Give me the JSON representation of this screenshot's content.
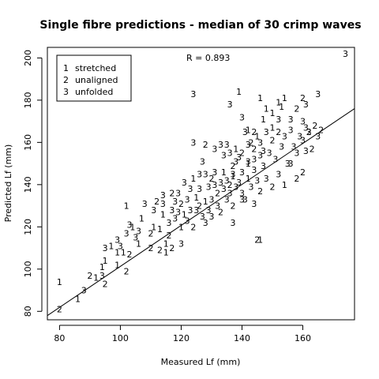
{
  "chart_data": {
    "type": "scatter",
    "title": "Single fibre predictions - median of 30 crimp waves",
    "xlabel": "Measured Lf (mm)",
    "ylabel": "Predicted Lf (mm)",
    "xlim": [
      76,
      177
    ],
    "ylim": [
      76,
      205
    ],
    "x_ticks": [
      80,
      100,
      120,
      140,
      160
    ],
    "y_ticks": [
      80,
      100,
      120,
      140,
      160,
      180,
      200
    ],
    "grid": false,
    "annotation": "R = 0.893",
    "legend": {
      "position": "top-left",
      "entries": [
        {
          "symbol": "1",
          "label": "stretched"
        },
        {
          "symbol": "2",
          "label": "unaligned"
        },
        {
          "symbol": "3",
          "label": "unfolded"
        }
      ]
    },
    "fit_line": {
      "x": [
        76,
        177
      ],
      "y": [
        78,
        176
      ]
    },
    "points": [
      {
        "x": 80,
        "y": 94,
        "s": "1"
      },
      {
        "x": 80,
        "y": 81,
        "s": "2"
      },
      {
        "x": 86,
        "y": 86,
        "s": "1"
      },
      {
        "x": 88,
        "y": 90,
        "s": "3"
      },
      {
        "x": 90,
        "y": 97,
        "s": "2"
      },
      {
        "x": 92,
        "y": 96,
        "s": "1"
      },
      {
        "x": 94,
        "y": 101,
        "s": "1"
      },
      {
        "x": 95,
        "y": 104,
        "s": "1"
      },
      {
        "x": 94,
        "y": 97,
        "s": "3"
      },
      {
        "x": 95,
        "y": 93,
        "s": "2"
      },
      {
        "x": 99,
        "y": 102,
        "s": "1"
      },
      {
        "x": 102,
        "y": 99,
        "s": "2"
      },
      {
        "x": 95,
        "y": 110,
        "s": "3"
      },
      {
        "x": 97,
        "y": 111,
        "s": "1"
      },
      {
        "x": 99,
        "y": 108,
        "s": "1"
      },
      {
        "x": 100,
        "y": 111,
        "s": "3"
      },
      {
        "x": 101,
        "y": 108,
        "s": "1"
      },
      {
        "x": 103,
        "y": 107,
        "s": "2"
      },
      {
        "x": 99,
        "y": 114,
        "s": "3"
      },
      {
        "x": 102,
        "y": 117,
        "s": "3"
      },
      {
        "x": 103,
        "y": 121,
        "s": "3"
      },
      {
        "x": 104,
        "y": 120,
        "s": "1"
      },
      {
        "x": 105,
        "y": 115,
        "s": "3"
      },
      {
        "x": 106,
        "y": 118,
        "s": "3"
      },
      {
        "x": 107,
        "y": 124,
        "s": "1"
      },
      {
        "x": 106,
        "y": 112,
        "s": "1"
      },
      {
        "x": 102,
        "y": 130,
        "s": "1"
      },
      {
        "x": 108,
        "y": 131,
        "s": "3"
      },
      {
        "x": 110,
        "y": 110,
        "s": "2"
      },
      {
        "x": 110,
        "y": 117,
        "s": "2"
      },
      {
        "x": 111,
        "y": 120,
        "s": "1"
      },
      {
        "x": 111,
        "y": 128,
        "s": "3"
      },
      {
        "x": 112,
        "y": 132,
        "s": "2"
      },
      {
        "x": 113,
        "y": 119,
        "s": "1"
      },
      {
        "x": 113,
        "y": 109,
        "s": "2"
      },
      {
        "x": 114,
        "y": 126,
        "s": "1"
      },
      {
        "x": 115,
        "y": 112,
        "s": "1"
      },
      {
        "x": 115,
        "y": 108,
        "s": "1"
      },
      {
        "x": 114,
        "y": 131,
        "s": "3"
      },
      {
        "x": 114,
        "y": 135,
        "s": "3"
      },
      {
        "x": 116,
        "y": 116,
        "s": "2"
      },
      {
        "x": 116,
        "y": 122,
        "s": "3"
      },
      {
        "x": 117,
        "y": 110,
        "s": "2"
      },
      {
        "x": 117,
        "y": 128,
        "s": "3"
      },
      {
        "x": 117,
        "y": 136,
        "s": "2"
      },
      {
        "x": 118,
        "y": 124,
        "s": "3"
      },
      {
        "x": 118,
        "y": 132,
        "s": "3"
      },
      {
        "x": 119,
        "y": 127,
        "s": "3"
      },
      {
        "x": 119,
        "y": 136,
        "s": "3"
      },
      {
        "x": 120,
        "y": 120,
        "s": "1"
      },
      {
        "x": 120,
        "y": 131,
        "s": "2"
      },
      {
        "x": 120,
        "y": 112,
        "s": "3"
      },
      {
        "x": 121,
        "y": 126,
        "s": "1"
      },
      {
        "x": 121,
        "y": 141,
        "s": "3"
      },
      {
        "x": 122,
        "y": 133,
        "s": "3"
      },
      {
        "x": 122,
        "y": 123,
        "s": "3"
      },
      {
        "x": 123,
        "y": 138,
        "s": "3"
      },
      {
        "x": 123,
        "y": 128,
        "s": "3"
      },
      {
        "x": 124,
        "y": 120,
        "s": "2"
      },
      {
        "x": 124,
        "y": 143,
        "s": "1"
      },
      {
        "x": 125,
        "y": 134,
        "s": "1"
      },
      {
        "x": 125,
        "y": 128,
        "s": "3"
      },
      {
        "x": 126,
        "y": 145,
        "s": "3"
      },
      {
        "x": 126,
        "y": 138,
        "s": "3"
      },
      {
        "x": 126,
        "y": 130,
        "s": "2"
      },
      {
        "x": 127,
        "y": 125,
        "s": "3"
      },
      {
        "x": 128,
        "y": 145,
        "s": "3"
      },
      {
        "x": 128,
        "y": 132,
        "s": "1"
      },
      {
        "x": 128,
        "y": 122,
        "s": "3"
      },
      {
        "x": 129,
        "y": 139,
        "s": "3"
      },
      {
        "x": 129,
        "y": 128,
        "s": "3"
      },
      {
        "x": 130,
        "y": 143,
        "s": "2"
      },
      {
        "x": 130,
        "y": 133,
        "s": "3"
      },
      {
        "x": 130,
        "y": 125,
        "s": "3"
      },
      {
        "x": 131,
        "y": 140,
        "s": "3"
      },
      {
        "x": 131,
        "y": 146,
        "s": "3"
      },
      {
        "x": 132,
        "y": 130,
        "s": "3"
      },
      {
        "x": 132,
        "y": 136,
        "s": "2"
      },
      {
        "x": 133,
        "y": 141,
        "s": "3"
      },
      {
        "x": 133,
        "y": 127,
        "s": "2"
      },
      {
        "x": 134,
        "y": 146,
        "s": "1"
      },
      {
        "x": 134,
        "y": 138,
        "s": "3"
      },
      {
        "x": 135,
        "y": 133,
        "s": "3"
      },
      {
        "x": 135,
        "y": 142,
        "s": "3"
      },
      {
        "x": 136,
        "y": 140,
        "s": "2"
      },
      {
        "x": 136,
        "y": 136,
        "s": "3"
      },
      {
        "x": 137,
        "y": 144,
        "s": "1"
      },
      {
        "x": 137,
        "y": 130,
        "s": "2"
      },
      {
        "x": 138,
        "y": 139,
        "s": "3"
      },
      {
        "x": 138,
        "y": 151,
        "s": "3"
      },
      {
        "x": 139,
        "y": 141,
        "s": "3"
      },
      {
        "x": 140,
        "y": 136,
        "s": "3"
      },
      {
        "x": 140,
        "y": 146,
        "s": "3"
      },
      {
        "x": 141,
        "y": 133,
        "s": "3"
      },
      {
        "x": 142,
        "y": 143,
        "s": "1"
      },
      {
        "x": 142,
        "y": 151,
        "s": "3"
      },
      {
        "x": 143,
        "y": 139,
        "s": "3"
      },
      {
        "x": 144,
        "y": 147,
        "s": "3"
      },
      {
        "x": 145,
        "y": 142,
        "s": "3"
      },
      {
        "x": 146,
        "y": 137,
        "s": "2"
      },
      {
        "x": 147,
        "y": 156,
        "s": "3"
      },
      {
        "x": 148,
        "y": 143,
        "s": "3"
      },
      {
        "x": 150,
        "y": 139,
        "s": "2"
      },
      {
        "x": 152,
        "y": 145,
        "s": "3"
      },
      {
        "x": 154,
        "y": 140,
        "s": "1"
      },
      {
        "x": 156,
        "y": 150,
        "s": "3"
      },
      {
        "x": 158,
        "y": 143,
        "s": "2"
      },
      {
        "x": 160,
        "y": 146,
        "s": "2"
      },
      {
        "x": 124,
        "y": 160,
        "s": "3"
      },
      {
        "x": 127,
        "y": 151,
        "s": "3"
      },
      {
        "x": 128,
        "y": 159,
        "s": "2"
      },
      {
        "x": 131,
        "y": 157,
        "s": "3"
      },
      {
        "x": 133,
        "y": 159,
        "s": "3"
      },
      {
        "x": 134,
        "y": 154,
        "s": "3"
      },
      {
        "x": 135,
        "y": 159,
        "s": "3"
      },
      {
        "x": 136,
        "y": 155,
        "s": "3"
      },
      {
        "x": 137,
        "y": 149,
        "s": "2"
      },
      {
        "x": 138,
        "y": 157,
        "s": "1"
      },
      {
        "x": 139,
        "y": 153,
        "s": "3"
      },
      {
        "x": 140,
        "y": 155,
        "s": "2"
      },
      {
        "x": 141,
        "y": 165,
        "s": "3"
      },
      {
        "x": 142,
        "y": 159,
        "s": "3"
      },
      {
        "x": 142,
        "y": 150,
        "s": "1"
      },
      {
        "x": 143,
        "y": 160,
        "s": "2"
      },
      {
        "x": 144,
        "y": 157,
        "s": "2"
      },
      {
        "x": 145,
        "y": 163,
        "s": "1"
      },
      {
        "x": 146,
        "y": 154,
        "s": "3"
      },
      {
        "x": 146,
        "y": 160,
        "s": "3"
      },
      {
        "x": 147,
        "y": 149,
        "s": "3"
      },
      {
        "x": 148,
        "y": 165,
        "s": "3"
      },
      {
        "x": 149,
        "y": 155,
        "s": "3"
      },
      {
        "x": 150,
        "y": 161,
        "s": "2"
      },
      {
        "x": 151,
        "y": 152,
        "s": "3"
      },
      {
        "x": 152,
        "y": 165,
        "s": "2"
      },
      {
        "x": 153,
        "y": 158,
        "s": "3"
      },
      {
        "x": 154,
        "y": 163,
        "s": "3"
      },
      {
        "x": 155,
        "y": 150,
        "s": "3"
      },
      {
        "x": 156,
        "y": 166,
        "s": "3"
      },
      {
        "x": 157,
        "y": 158,
        "s": "3"
      },
      {
        "x": 158,
        "y": 155,
        "s": "3"
      },
      {
        "x": 159,
        "y": 163,
        "s": "3"
      },
      {
        "x": 160,
        "y": 161,
        "s": "3"
      },
      {
        "x": 161,
        "y": 156,
        "s": "3"
      },
      {
        "x": 162,
        "y": 165,
        "s": "3"
      },
      {
        "x": 163,
        "y": 157,
        "s": "2"
      },
      {
        "x": 165,
        "y": 163,
        "s": "3"
      },
      {
        "x": 166,
        "y": 166,
        "s": "2"
      },
      {
        "x": 144,
        "y": 152,
        "s": "3"
      },
      {
        "x": 140,
        "y": 172,
        "s": "3"
      },
      {
        "x": 142,
        "y": 166,
        "s": "1"
      },
      {
        "x": 144,
        "y": 165,
        "s": "2"
      },
      {
        "x": 147,
        "y": 171,
        "s": "1"
      },
      {
        "x": 150,
        "y": 174,
        "s": "1"
      },
      {
        "x": 152,
        "y": 171,
        "s": "3"
      },
      {
        "x": 153,
        "y": 177,
        "s": "1"
      },
      {
        "x": 156,
        "y": 171,
        "s": "3"
      },
      {
        "x": 158,
        "y": 176,
        "s": "2"
      },
      {
        "x": 160,
        "y": 170,
        "s": "3"
      },
      {
        "x": 161,
        "y": 167,
        "s": "3"
      },
      {
        "x": 162,
        "y": 165,
        "s": "2"
      },
      {
        "x": 161,
        "y": 178,
        "s": "3"
      },
      {
        "x": 160,
        "y": 181,
        "s": "2"
      },
      {
        "x": 164,
        "y": 168,
        "s": "2"
      },
      {
        "x": 148,
        "y": 176,
        "s": "1"
      },
      {
        "x": 124,
        "y": 183,
        "s": "3"
      },
      {
        "x": 136,
        "y": 178,
        "s": "3"
      },
      {
        "x": 139,
        "y": 184,
        "s": "1"
      },
      {
        "x": 146,
        "y": 181,
        "s": "1"
      },
      {
        "x": 152,
        "y": 179,
        "s": "1"
      },
      {
        "x": 154,
        "y": 181,
        "s": "1"
      },
      {
        "x": 165,
        "y": 183,
        "s": "3"
      },
      {
        "x": 174,
        "y": 202,
        "s": "3"
      },
      {
        "x": 137,
        "y": 122,
        "s": "3"
      },
      {
        "x": 140,
        "y": 133,
        "s": "3"
      },
      {
        "x": 137,
        "y": 145,
        "s": "3"
      },
      {
        "x": 145,
        "y": 114,
        "s": "2"
      },
      {
        "x": 146,
        "y": 114,
        "s": "1"
      },
      {
        "x": 144,
        "y": 131,
        "s": "3"
      },
      {
        "x": 150,
        "y": 167,
        "s": "1"
      }
    ]
  }
}
